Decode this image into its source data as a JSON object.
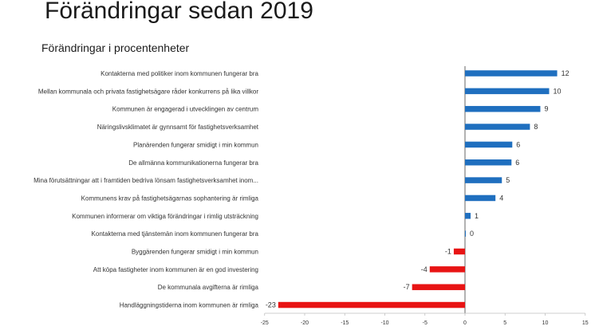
{
  "page_title": "Förändringar sedan 2019",
  "colors": {
    "positive": "#1f6fbf",
    "negative": "#e81414",
    "axis": "#404040",
    "text": "#333333"
  },
  "chart_data": {
    "type": "bar",
    "orientation": "horizontal",
    "title": "Förändringar i procentenheter",
    "xlabel": "",
    "ylabel": "",
    "xlim": [
      -25,
      15
    ],
    "ticks": [
      -25,
      -20,
      -15,
      -10,
      -5,
      0,
      5,
      10,
      15
    ],
    "tick_labels": [
      "-25",
      "-20",
      "-15",
      "-10",
      "-5",
      "0",
      "5",
      "10",
      "15"
    ],
    "grid": false,
    "categories": [
      "Kontakterna med politiker inom kommunen fungerar bra",
      "Mellan kommunala och privata fastighetsägare råder konkurrens på lika villkor",
      "Kommunen är engagerad i utvecklingen av centrum",
      "Näringslivsklimatet är gynnsamt för fastighetsverksamhet",
      "Planärenden fungerar smidigt i min kommun",
      "De allmänna kommunikationerna fungerar bra",
      "Mina förutsättningar att i framtiden bedriva lönsam fastighetsverksamhet inom...",
      "Kommunens krav på fastighetsägarnas sophantering är rimliga",
      "Kommunen informerar om viktiga förändringar i rimlig utsträckning",
      "Kontakterna med tjänstemän inom kommunen fungerar bra",
      "Byggärenden fungerar smidigt i min kommun",
      "Att köpa fastigheter inom kommunen är en god investering",
      "De kommunala avgifterna är rimliga",
      "Handläggningstiderna inom kommunen är rimliga"
    ],
    "values": [
      11.5,
      10.5,
      9.4,
      8.1,
      5.9,
      5.8,
      4.6,
      3.8,
      0.7,
      0.1,
      -1.4,
      -4.4,
      -6.6,
      -23.3
    ],
    "value_labels": [
      "12",
      "10",
      "9",
      "8",
      "6",
      "6",
      "5",
      "4",
      "1",
      "0",
      "-1",
      "-4",
      "-7",
      "-23"
    ]
  }
}
